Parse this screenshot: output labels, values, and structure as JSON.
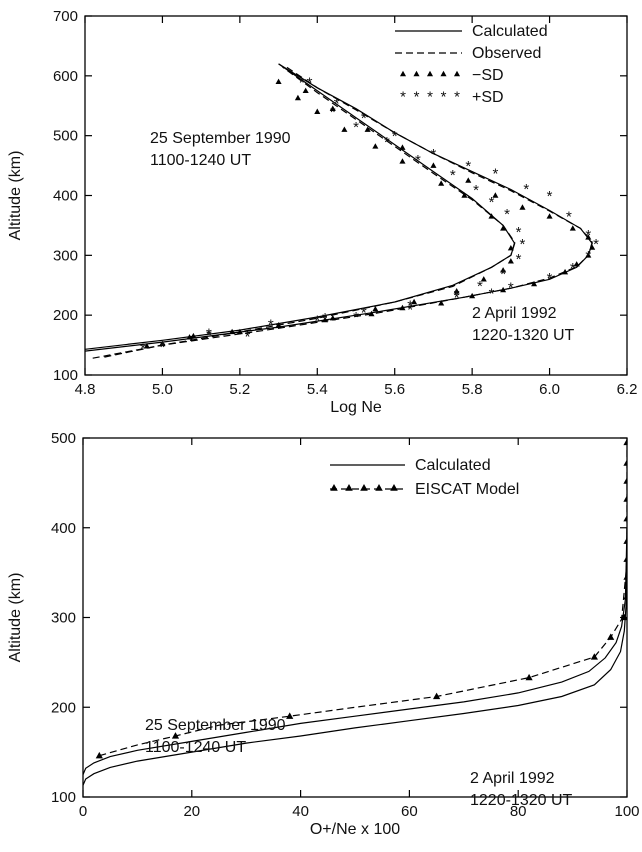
{
  "chart_data": [
    {
      "type": "line",
      "xlabel": "Log Ne",
      "ylabel": "Altitude (km)",
      "xlim": [
        4.8,
        6.2
      ],
      "ylim": [
        100,
        700
      ],
      "xticks": [
        "4.8",
        "5.0",
        "5.2",
        "5.4",
        "5.6",
        "5.8",
        "6.0",
        "6.2"
      ],
      "yticks": [
        "100",
        "200",
        "300",
        "400",
        "500",
        "600",
        "700"
      ],
      "legend_position": "top-right",
      "legend": [
        {
          "label": "Calculated",
          "style": "solid"
        },
        {
          "label": "Observed",
          "style": "dashed"
        },
        {
          "label": "−SD",
          "style": "triangle"
        },
        {
          "label": "+SD",
          "style": "star"
        }
      ],
      "annotations": [
        {
          "lines": [
            "25 September 1990",
            "1100-1240 UT"
          ]
        },
        {
          "lines": [
            "2 April 1992",
            "1220-1320 UT"
          ]
        }
      ],
      "series": [
        {
          "case": "25 September 1990",
          "style": "solid",
          "x": [
            4.8,
            5.0,
            5.2,
            5.4,
            5.6,
            5.75,
            5.85,
            5.9,
            5.91,
            5.88,
            5.8,
            5.7,
            5.6,
            5.5,
            5.4,
            5.3
          ],
          "y": [
            143,
            158,
            175,
            197,
            222,
            250,
            280,
            300,
            320,
            350,
            395,
            440,
            485,
            530,
            575,
            620
          ]
        },
        {
          "case": "25 September 1990",
          "style": "dashed",
          "x": [
            4.82,
            5.0,
            5.2,
            5.4,
            5.6,
            5.75,
            5.85,
            5.9,
            5.91,
            5.88,
            5.8,
            5.7,
            5.6,
            5.5,
            5.4,
            5.31
          ],
          "y": [
            128,
            150,
            172,
            195,
            222,
            248,
            280,
            300,
            322,
            350,
            393,
            437,
            482,
            527,
            572,
            615
          ]
        },
        {
          "case": "2 April 1992",
          "style": "solid",
          "x": [
            4.8,
            5.0,
            5.3,
            5.55,
            5.78,
            5.9,
            6.0,
            6.07,
            6.1,
            6.11,
            6.08,
            6.0,
            5.9,
            5.8,
            5.7,
            5.6,
            5.5,
            5.4,
            5.3
          ],
          "y": [
            140,
            155,
            180,
            205,
            230,
            245,
            260,
            280,
            300,
            320,
            345,
            375,
            410,
            440,
            470,
            505,
            545,
            580,
            620
          ]
        },
        {
          "case": "2 April 1992",
          "style": "dashed",
          "x": [
            4.85,
            5.0,
            5.3,
            5.55,
            5.78,
            5.9,
            6.0,
            6.07,
            6.1,
            6.11,
            6.08,
            6.0,
            5.9,
            5.8,
            5.7,
            5.6,
            5.5,
            5.4,
            5.32
          ],
          "y": [
            130,
            150,
            178,
            203,
            230,
            245,
            262,
            281,
            300,
            322,
            345,
            374,
            408,
            438,
            470,
            505,
            543,
            580,
            615
          ]
        },
        {
          "case": "25 September 1990",
          "style": "triangle",
          "x": [
            4.96,
            5.0,
            5.08,
            5.18,
            5.3,
            5.44,
            5.55,
            5.65,
            5.76,
            5.83,
            5.88,
            5.9,
            5.9,
            5.88,
            5.85,
            5.78,
            5.72,
            5.62,
            5.55,
            5.47,
            5.4,
            5.35,
            5.3
          ],
          "y": [
            148,
            152,
            165,
            172,
            183,
            195,
            210,
            222,
            240,
            260,
            275,
            290,
            312,
            345,
            365,
            400,
            420,
            457,
            482,
            510,
            540,
            563,
            590
          ]
        },
        {
          "case": "25 September 1990",
          "style": "star",
          "x": [
            4.95,
            5.0,
            5.12,
            5.22,
            5.3,
            5.42,
            5.52,
            5.64,
            5.76,
            5.82,
            5.88,
            5.92,
            5.93,
            5.92,
            5.89,
            5.85,
            5.81,
            5.75,
            5.66,
            5.58,
            5.5,
            5.44,
            5.36
          ],
          "y": [
            145,
            148,
            170,
            165,
            180,
            196,
            205,
            217,
            235,
            250,
            270,
            295,
            320,
            340,
            370,
            390,
            410,
            435,
            460,
            490,
            515,
            540,
            590
          ]
        },
        {
          "case": "2 April 1992",
          "style": "triangle",
          "x": [
            5.07,
            5.2,
            5.3,
            5.42,
            5.54,
            5.62,
            5.72,
            5.8,
            5.88,
            5.96,
            6.04,
            6.07,
            6.1,
            6.11,
            6.1,
            6.06,
            6.0,
            5.93,
            5.86,
            5.79,
            5.7,
            5.62,
            5.53,
            5.44,
            5.37
          ],
          "y": [
            163,
            172,
            182,
            192,
            202,
            212,
            220,
            232,
            242,
            252,
            272,
            285,
            300,
            313,
            330,
            345,
            365,
            380,
            400,
            425,
            450,
            480,
            510,
            545,
            575
          ]
        },
        {
          "case": "2 April 1992",
          "style": "star",
          "x": [
            5.12,
            5.28,
            5.4,
            5.5,
            5.64,
            5.76,
            5.85,
            5.9,
            6.0,
            6.06,
            6.1,
            6.12,
            6.1,
            6.05,
            6.0,
            5.94,
            5.86,
            5.79,
            5.7,
            5.6,
            5.52,
            5.45,
            5.38
          ],
          "y": [
            168,
            185,
            192,
            198,
            210,
            230,
            237,
            247,
            263,
            280,
            300,
            320,
            335,
            366,
            400,
            412,
            438,
            450,
            470,
            500,
            530,
            555,
            590
          ]
        }
      ]
    },
    {
      "type": "line",
      "xlabel": "O+/Ne x 100",
      "ylabel": "Altitude (km)",
      "xlim": [
        0,
        100
      ],
      "ylim": [
        100,
        500
      ],
      "xticks": [
        "0",
        "20",
        "40",
        "60",
        "80",
        "100"
      ],
      "yticks": [
        "100",
        "200",
        "300",
        "400",
        "500"
      ],
      "legend_position": "top-right",
      "legend": [
        {
          "label": "Calculated",
          "style": "solid"
        },
        {
          "label": "EISCAT Model",
          "style": "dashed-triangle"
        }
      ],
      "annotations": [
        {
          "lines": [
            "25 September 1990",
            "1100-1240 UT"
          ]
        },
        {
          "lines": [
            "2 April 1992",
            "1220-1320 UT"
          ]
        }
      ],
      "series": [
        {
          "case": "25 September 1990",
          "style": "solid",
          "x": [
            0,
            0.5,
            2,
            5,
            10,
            20,
            30,
            40,
            50,
            60,
            70,
            80,
            88,
            93,
            96,
            98,
            99,
            99.7,
            100
          ],
          "y": [
            125,
            132,
            138,
            145,
            152,
            162,
            172,
            182,
            190,
            198,
            206,
            216,
            228,
            240,
            255,
            272,
            290,
            320,
            400
          ]
        },
        {
          "case": "2 April 1992",
          "style": "solid",
          "x": [
            0,
            0.5,
            2,
            5,
            10,
            20,
            30,
            40,
            50,
            60,
            70,
            80,
            88,
            94,
            97,
            98.8,
            99.5,
            99.9,
            100
          ],
          "y": [
            113,
            120,
            126,
            133,
            140,
            150,
            160,
            168,
            177,
            185,
            193,
            202,
            212,
            225,
            242,
            262,
            285,
            320,
            400
          ]
        },
        {
          "case": "EISCAT Model",
          "style": "dashed-triangle",
          "x": [
            3,
            10,
            17,
            25,
            38,
            50,
            65,
            82,
            94,
            97,
            99,
            99.5,
            100,
            100,
            100,
            100,
            100,
            100,
            100,
            100,
            100,
            100
          ],
          "y": [
            146,
            158,
            168,
            180,
            190,
            200,
            212,
            233,
            256,
            278,
            298,
            330,
            362,
            385,
            410,
            432,
            452,
            472,
            490,
            300,
            323,
            345
          ],
          "marker_x": [
            3,
            17,
            38,
            65,
            82,
            94,
            97,
            99.5,
            100,
            100,
            100,
            100,
            100,
            100,
            100,
            100,
            100
          ],
          "marker_y": [
            146,
            168,
            190,
            212,
            233,
            256,
            278,
            300,
            323,
            345,
            365,
            385,
            410,
            432,
            452,
            472,
            495
          ]
        }
      ]
    }
  ]
}
